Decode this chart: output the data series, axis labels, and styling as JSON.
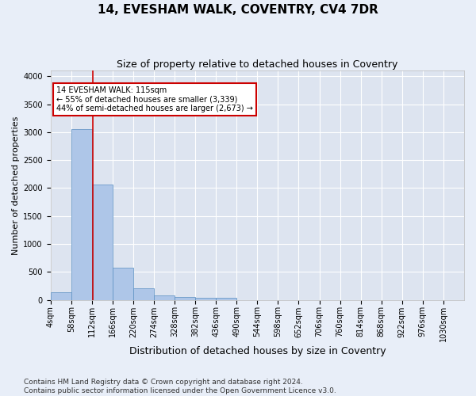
{
  "title": "14, EVESHAM WALK, COVENTRY, CV4 7DR",
  "subtitle": "Size of property relative to detached houses in Coventry",
  "xlabel": "Distribution of detached houses by size in Coventry",
  "ylabel": "Number of detached properties",
  "bar_color": "#aec6e8",
  "bar_edge_color": "#5a8fc2",
  "background_color": "#dde4f0",
  "grid_color": "#ffffff",
  "fig_background": "#e8eef8",
  "property_line_x": 115,
  "property_line_color": "#cc0000",
  "annotation_text": "14 EVESHAM WALK: 115sqm\n← 55% of detached houses are smaller (3,339)\n44% of semi-detached houses are larger (2,673) →",
  "annotation_box_color": "#cc0000",
  "bin_edges": [
    4,
    58,
    112,
    166,
    220,
    274,
    328,
    382,
    436,
    490,
    544,
    598,
    652,
    706,
    760,
    814,
    868,
    922,
    976,
    1030,
    1084
  ],
  "bar_heights": [
    140,
    3060,
    2060,
    570,
    200,
    80,
    55,
    40,
    35,
    0,
    0,
    0,
    0,
    0,
    0,
    0,
    0,
    0,
    0,
    0
  ],
  "ylim": [
    0,
    4100
  ],
  "yticks": [
    0,
    500,
    1000,
    1500,
    2000,
    2500,
    3000,
    3500,
    4000
  ],
  "footer_text": "Contains HM Land Registry data © Crown copyright and database right 2024.\nContains public sector information licensed under the Open Government Licence v3.0.",
  "title_fontsize": 11,
  "subtitle_fontsize": 9,
  "xlabel_fontsize": 9,
  "ylabel_fontsize": 8,
  "tick_fontsize": 7,
  "footer_fontsize": 6.5
}
